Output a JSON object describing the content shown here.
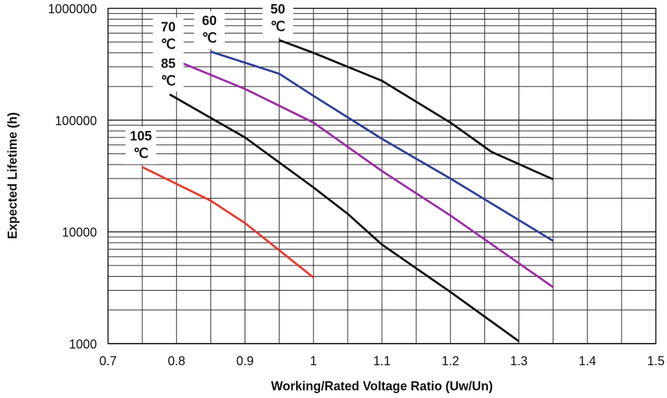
{
  "chart_data": {
    "type": "line",
    "title": "",
    "xlabel": "Working/Rated Voltage Ratio (Uw/Un)",
    "ylabel": "Expected Lifetime (h)",
    "xlim": [
      0.7,
      1.5
    ],
    "ylim": [
      1000,
      1000000
    ],
    "yscale": "log",
    "grid": true,
    "x_ticks": [
      0.7,
      0.8,
      0.9,
      1.0,
      1.1,
      1.2,
      1.3,
      1.4,
      1.5
    ],
    "x_tick_labels": [
      "0.7",
      "0.8",
      "0.9",
      "1",
      "1.1",
      "1.2",
      "1.3",
      "1.4",
      "1.5"
    ],
    "y_ticks": [
      1000,
      10000,
      100000,
      1000000
    ],
    "y_tick_labels": [
      "1000",
      "10000",
      "100000",
      "1000000"
    ],
    "series": [
      {
        "name": "50 ℃",
        "label_lines": [
          "50",
          "℃"
        ],
        "color": "#111111",
        "points": [
          [
            0.95,
            520000
          ],
          [
            1.0,
            400000
          ],
          [
            1.1,
            225000
          ],
          [
            1.2,
            95000
          ],
          [
            1.26,
            52000
          ],
          [
            1.35,
            29500
          ]
        ]
      },
      {
        "name": "60 ℃",
        "label_lines": [
          "60",
          "℃"
        ],
        "color": "#2e3f97",
        "points": [
          [
            0.85,
            410000
          ],
          [
            0.95,
            260000
          ],
          [
            1.0,
            165000
          ],
          [
            1.1,
            68000
          ],
          [
            1.2,
            30000
          ],
          [
            1.35,
            8300
          ]
        ]
      },
      {
        "name": "70 ℃",
        "label_lines": [
          "70",
          "℃"
        ],
        "color": "#9b2ba6",
        "points": [
          [
            0.79,
            360000
          ],
          [
            0.9,
            190000
          ],
          [
            1.0,
            95000
          ],
          [
            1.1,
            35000
          ],
          [
            1.2,
            14000
          ],
          [
            1.35,
            3200
          ]
        ]
      },
      {
        "name": "85 ℃",
        "label_lines": [
          "85",
          "℃"
        ],
        "color": "#111111",
        "points": [
          [
            0.79,
            170000
          ],
          [
            0.9,
            70000
          ],
          [
            1.0,
            25000
          ],
          [
            1.05,
            14500
          ],
          [
            1.1,
            7700
          ],
          [
            1.2,
            2900
          ],
          [
            1.3,
            1050
          ]
        ]
      },
      {
        "name": "105 ℃",
        "label_lines": [
          "105",
          "℃"
        ],
        "color": "#e8392c",
        "points": [
          [
            0.75,
            38000
          ],
          [
            0.85,
            19000
          ],
          [
            0.9,
            12000
          ],
          [
            1.0,
            3900
          ]
        ]
      }
    ]
  }
}
